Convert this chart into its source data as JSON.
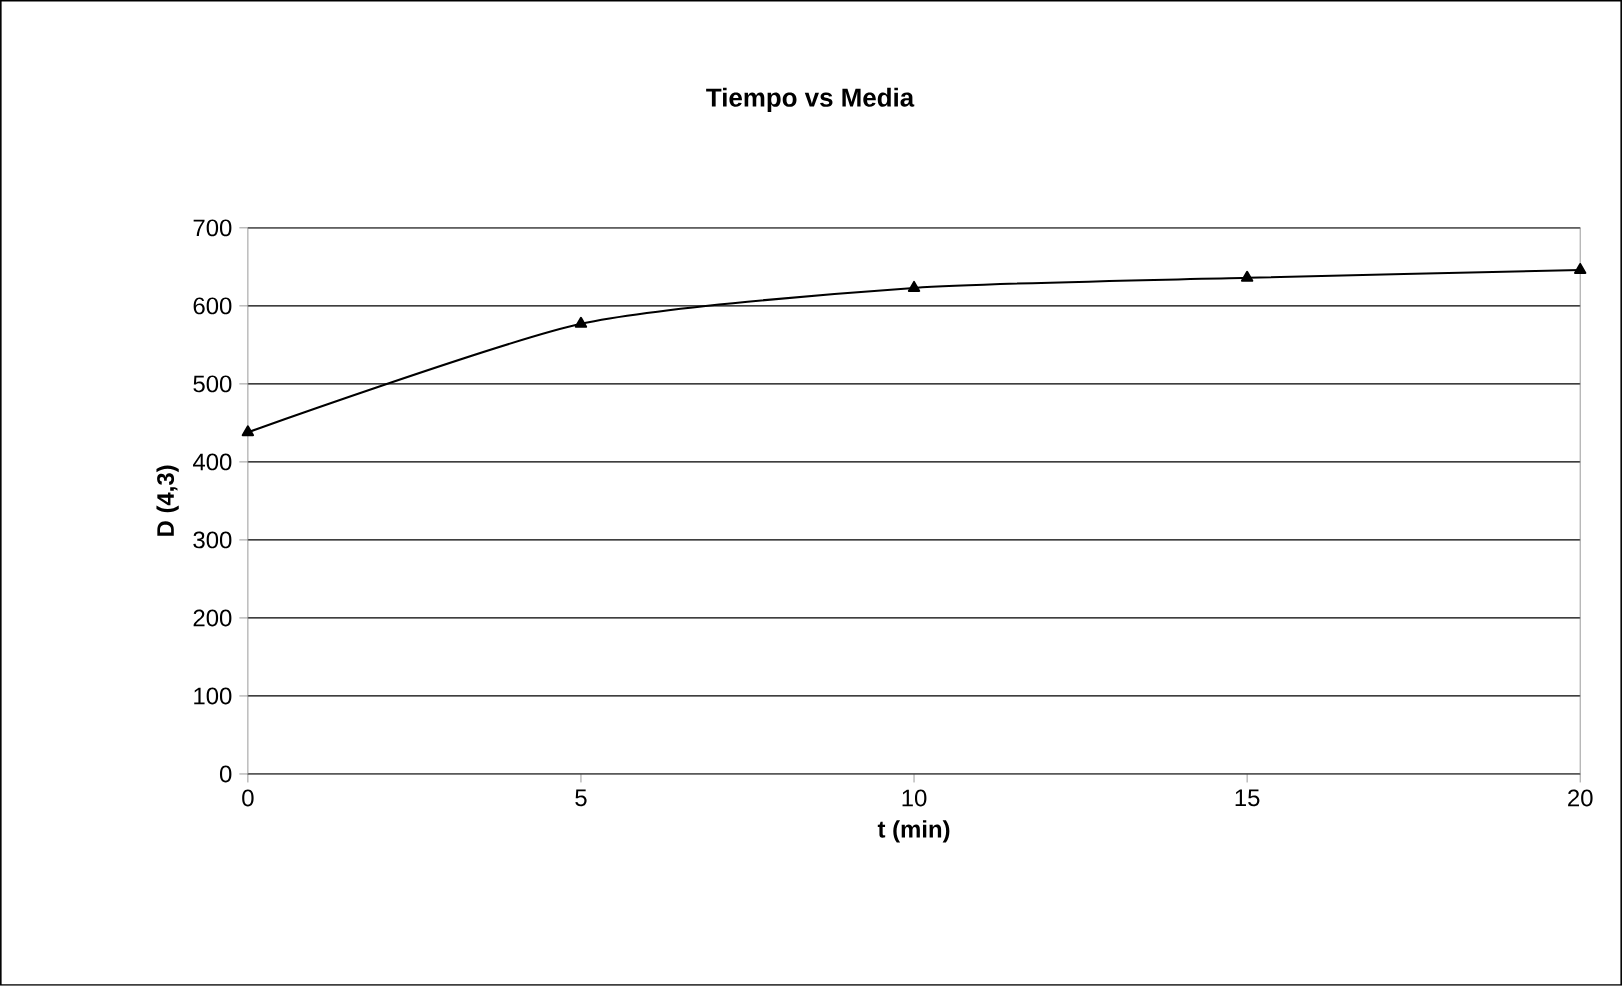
{
  "chart_data": {
    "type": "line",
    "title": "Tiempo vs Media",
    "xlabel": "t (min)",
    "ylabel": "D (4,3)",
    "series": [
      {
        "color": "#000000",
        "x": [
          0,
          5,
          10,
          15,
          20
        ],
        "values": [
          438,
          577,
          623,
          636,
          646
        ]
      }
    ],
    "xlim": [
      0,
      20
    ],
    "xticks": [
      0,
      5,
      10,
      15,
      20
    ],
    "ylim": [
      0,
      700
    ],
    "yticks": [
      0,
      100,
      200,
      300,
      400,
      500,
      600,
      700
    ],
    "grid": "y",
    "marker": "triangle",
    "line_style": "solid"
  }
}
